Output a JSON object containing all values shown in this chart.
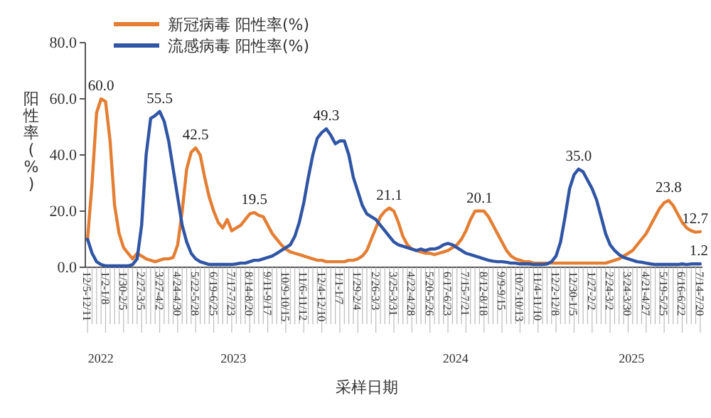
{
  "chart_data": {
    "type": "line",
    "xlabel": "采样日期",
    "ylabel": "阳性率(%)",
    "legend": "top left",
    "grid": false,
    "ylim": [
      0,
      80
    ],
    "yticks": [
      {
        "value": 0,
        "label": "0.0"
      },
      {
        "value": 20,
        "label": "20.0"
      },
      {
        "value": 40,
        "label": "40.0"
      },
      {
        "value": 60,
        "label": "60.0"
      },
      {
        "value": 80,
        "label": "80.0"
      }
    ],
    "categories": [
      "12/5-12/11",
      null,
      null,
      null,
      "1/2-1/8",
      null,
      null,
      null,
      "1/30-2/5",
      null,
      null,
      null,
      "2/27-3/5",
      null,
      null,
      null,
      "3/27-4/2",
      null,
      null,
      null,
      "4/24-4/30",
      null,
      null,
      null,
      "5/22-5/28",
      null,
      null,
      null,
      "6/19-6/25",
      null,
      null,
      null,
      "7/17-7/23",
      null,
      null,
      null,
      "8/14-8/20",
      null,
      null,
      null,
      "9/11-9/17",
      null,
      null,
      null,
      "10/9-10/15",
      null,
      null,
      null,
      "11/6-11/12",
      null,
      null,
      null,
      "12/4-12/10",
      null,
      null,
      null,
      "1/1-1/7",
      null,
      null,
      null,
      "1/29-2/4",
      null,
      null,
      null,
      "2/26-3/3",
      null,
      null,
      null,
      "3/25-3/31",
      null,
      null,
      null,
      "4/22-4/28",
      null,
      null,
      null,
      "5/20-5/26",
      null,
      null,
      null,
      "6/17-6/23",
      null,
      null,
      null,
      "7/15-7/21",
      null,
      null,
      null,
      "8/12-8/18",
      null,
      null,
      null,
      "9/9-9/15",
      null,
      null,
      null,
      "10/7-10/13",
      null,
      null,
      null,
      "11/4-11/10",
      null,
      null,
      null,
      "12/2-12/8",
      null,
      null,
      null,
      "12/30-1/5",
      null,
      null,
      null,
      "1/27-2/2",
      null,
      null,
      null,
      "2/24-3/2",
      null,
      null,
      null,
      "3/24-3/30",
      null,
      null,
      null,
      "4/21-4/27",
      null,
      null,
      null,
      "5/19-5/25",
      null,
      null,
      null,
      "6/16-6/22",
      null,
      null,
      null,
      "7/14-7/20"
    ],
    "series": [
      {
        "name": "新冠病毒 阳性率(%)",
        "color": "#e47e33",
        "values": [
          10,
          30,
          55,
          60.0,
          59,
          45,
          22,
          12,
          7,
          5,
          3,
          5,
          4,
          3,
          2.5,
          2,
          2.5,
          3,
          3,
          3.5,
          8,
          20,
          35,
          41,
          42.5,
          40,
          32,
          25,
          20,
          16,
          14,
          17,
          13,
          14,
          15,
          17,
          19,
          19.5,
          18.5,
          18,
          15,
          12,
          10,
          8,
          6.5,
          5.5,
          5,
          4.5,
          4,
          3.5,
          3,
          2.5,
          2.5,
          2,
          2,
          2,
          2,
          2,
          2.5,
          2.5,
          3,
          4,
          6,
          10,
          14,
          18,
          20,
          21.1,
          20,
          16,
          11,
          8,
          6.5,
          6,
          5.5,
          5,
          5,
          4.5,
          5,
          5.5,
          6,
          7,
          8,
          10,
          13,
          17,
          20,
          20.1,
          20,
          18,
          15,
          12,
          9,
          6,
          4,
          3,
          2.5,
          2,
          2,
          1.5,
          1.5,
          1.5,
          1.5,
          1.5,
          1.5,
          1.5,
          1.5,
          1.5,
          1.5,
          1.5,
          1.5,
          1.5,
          1.5,
          1.5,
          1.5,
          1.5,
          2,
          2.5,
          3,
          4,
          5,
          6,
          8,
          10,
          12,
          15,
          18,
          21,
          23,
          23.8,
          22,
          19,
          16,
          14,
          13,
          12.5,
          12.7
        ],
        "value_labels": [
          null,
          null,
          null,
          "60.0",
          null,
          null,
          null,
          null,
          null,
          null,
          null,
          null,
          null,
          null,
          null,
          null,
          null,
          null,
          null,
          null,
          null,
          null,
          null,
          null,
          "42.5",
          null,
          null,
          null,
          null,
          null,
          null,
          null,
          null,
          null,
          null,
          null,
          null,
          "19.5",
          null,
          null,
          null,
          null,
          null,
          null,
          null,
          null,
          null,
          null,
          null,
          null,
          null,
          null,
          null,
          null,
          null,
          null,
          null,
          null,
          null,
          null,
          null,
          null,
          null,
          null,
          null,
          null,
          null,
          "21.1",
          null,
          null,
          null,
          null,
          null,
          null,
          null,
          null,
          null,
          null,
          null,
          null,
          null,
          null,
          null,
          null,
          null,
          null,
          null,
          "20.1",
          null,
          null,
          null,
          null,
          null,
          null,
          null,
          null,
          null,
          null,
          null,
          null,
          null,
          null,
          null,
          null,
          null,
          null,
          null,
          null,
          null,
          null,
          null,
          null,
          null,
          null,
          null,
          null,
          null,
          null,
          null,
          null,
          null,
          null,
          null,
          null,
          null,
          null,
          null,
          null,
          null,
          "23.8",
          null,
          null,
          null,
          null,
          null,
          null,
          "12.7"
        ]
      },
      {
        "name": "流感病毒 阳性率(%)",
        "color": "#2f55a4",
        "values": [
          10,
          5,
          2,
          1,
          0.5,
          0.5,
          0.5,
          0.5,
          0.5,
          0.5,
          1,
          3,
          15,
          40,
          53,
          54,
          55.5,
          52,
          45,
          35,
          25,
          15,
          9,
          5,
          3,
          2,
          1.5,
          1,
          1,
          1,
          1,
          1,
          1,
          1.2,
          1.5,
          1.5,
          2,
          2.5,
          2.5,
          3,
          3.5,
          4,
          5,
          6,
          7,
          8,
          11,
          16,
          23,
          32,
          40,
          46,
          48,
          49.3,
          47,
          44,
          45,
          45,
          40,
          32,
          27,
          22,
          19,
          18,
          17,
          15,
          13,
          11,
          9,
          8,
          7.5,
          7,
          6.5,
          6,
          6.5,
          6,
          6.5,
          6.5,
          7,
          8,
          8.5,
          8,
          7,
          6,
          5,
          4.5,
          4,
          3.5,
          3,
          2.5,
          2.2,
          2,
          2,
          1.8,
          1.5,
          1.5,
          1.2,
          1.2,
          1.2,
          1,
          1,
          1,
          1.2,
          2,
          4,
          9,
          18,
          28,
          33,
          35.0,
          34,
          31,
          28,
          24,
          18,
          12,
          8,
          6,
          4.5,
          3.5,
          3,
          2.5,
          2,
          1.8,
          1.5,
          1.2,
          1,
          1,
          1,
          1,
          1,
          1,
          1.2,
          1,
          1.2,
          1.2,
          1.2
        ],
        "value_labels": [
          null,
          null,
          null,
          null,
          null,
          null,
          null,
          null,
          null,
          null,
          null,
          null,
          null,
          null,
          null,
          null,
          "55.5",
          null,
          null,
          null,
          null,
          null,
          null,
          null,
          null,
          null,
          null,
          null,
          null,
          null,
          null,
          null,
          null,
          null,
          null,
          null,
          null,
          null,
          null,
          null,
          null,
          null,
          null,
          null,
          null,
          null,
          null,
          null,
          null,
          null,
          null,
          null,
          null,
          "49.3",
          null,
          null,
          null,
          null,
          null,
          null,
          null,
          null,
          null,
          null,
          null,
          null,
          null,
          null,
          null,
          null,
          null,
          null,
          null,
          null,
          null,
          null,
          null,
          null,
          null,
          null,
          null,
          null,
          null,
          null,
          null,
          null,
          null,
          null,
          null,
          null,
          null,
          null,
          null,
          null,
          null,
          null,
          null,
          null,
          null,
          null,
          null,
          null,
          null,
          null,
          null,
          null,
          null,
          null,
          null,
          "35.0",
          null,
          null,
          null,
          null,
          null,
          null,
          null,
          null,
          null,
          null,
          null,
          null,
          null,
          null,
          null,
          null,
          null,
          null,
          null,
          null,
          null,
          null,
          null,
          null,
          null,
          null,
          "1.2"
        ]
      }
    ],
    "annotations": [
      "2022",
      "2023",
      "2024",
      "2025"
    ]
  }
}
